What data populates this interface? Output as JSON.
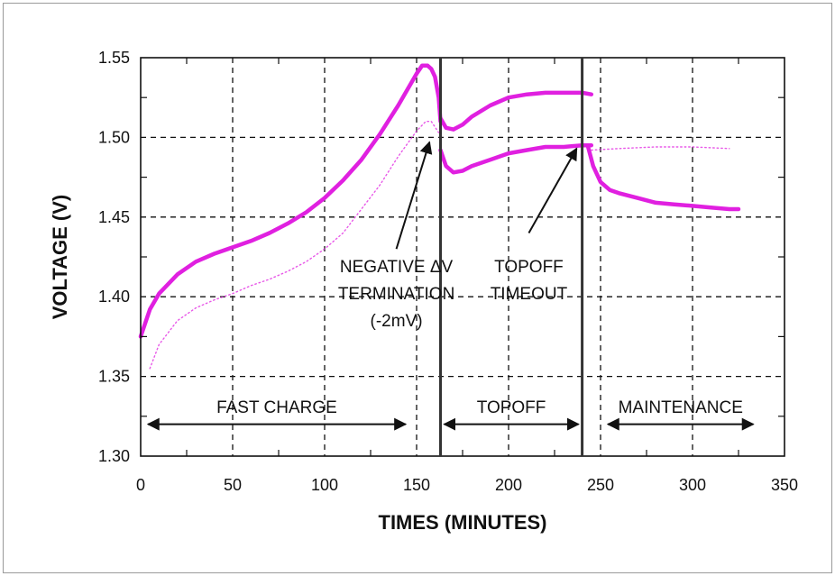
{
  "chart_data": {
    "type": "line",
    "xlabel": "TIMES (MINUTES)",
    "ylabel": "VOLTAGE (V)",
    "xlim": [
      0,
      350
    ],
    "ylim": [
      1.3,
      1.55
    ],
    "x_ticks": [
      "0",
      "50",
      "100",
      "150",
      "200",
      "250",
      "300",
      "350"
    ],
    "y_ticks": [
      "1.30",
      "1.35",
      "1.40",
      "1.45",
      "1.50",
      "1.55"
    ],
    "grid": true,
    "line_color": "#e020e0",
    "series": [
      {
        "style": "solid",
        "x": [
          0,
          5,
          10,
          20,
          30,
          40,
          50,
          60,
          70,
          80,
          90,
          100,
          110,
          120,
          130,
          140,
          145,
          150,
          153,
          156,
          158,
          160,
          162,
          163
        ],
        "y": [
          1.375,
          1.392,
          1.402,
          1.414,
          1.422,
          1.427,
          1.431,
          1.435,
          1.44,
          1.446,
          1.453,
          1.462,
          1.473,
          1.486,
          1.502,
          1.52,
          1.53,
          1.54,
          1.545,
          1.545,
          1.543,
          1.538,
          1.525,
          1.51
        ]
      },
      {
        "style": "solid",
        "x": [
          163,
          166,
          170,
          175,
          180,
          190,
          200,
          210,
          220,
          230,
          240,
          245
        ],
        "y": [
          1.512,
          1.506,
          1.505,
          1.508,
          1.513,
          1.52,
          1.525,
          1.527,
          1.528,
          1.528,
          1.528,
          1.527
        ]
      },
      {
        "style": "solid",
        "x": [
          163,
          166,
          170,
          175,
          180,
          190,
          200,
          210,
          220,
          230,
          240,
          245
        ],
        "y": [
          1.492,
          1.482,
          1.478,
          1.479,
          1.482,
          1.486,
          1.49,
          1.492,
          1.494,
          1.494,
          1.495,
          1.495
        ]
      },
      {
        "style": "solid",
        "x": [
          243,
          246,
          250,
          255,
          260,
          270,
          280,
          290,
          300,
          310,
          320,
          325
        ],
        "y": [
          1.495,
          1.482,
          1.472,
          1.467,
          1.465,
          1.462,
          1.459,
          1.458,
          1.457,
          1.456,
          1.455,
          1.455
        ]
      },
      {
        "style": "dotted",
        "x": [
          5,
          10,
          20,
          30,
          40,
          50,
          60,
          70,
          80,
          90,
          100,
          110,
          120,
          130,
          140,
          150,
          155,
          158,
          162
        ],
        "y": [
          1.355,
          1.37,
          1.385,
          1.393,
          1.398,
          1.402,
          1.407,
          1.411,
          1.416,
          1.422,
          1.43,
          1.44,
          1.455,
          1.47,
          1.488,
          1.504,
          1.51,
          1.51,
          1.503
        ]
      },
      {
        "style": "dotted",
        "x": [
          245,
          260,
          280,
          300,
          320
        ],
        "y": [
          1.492,
          1.493,
          1.494,
          1.494,
          1.493
        ]
      }
    ],
    "vertical_markers": [
      163,
      240
    ],
    "annotations": [
      {
        "id": "negative-dv",
        "lines": [
          "NEGATIVE ΔV",
          "TERMINATION",
          "(-2mV)"
        ],
        "arrow_from": [
          139,
          1.43
        ],
        "arrow_to": [
          157,
          1.497
        ]
      },
      {
        "id": "topoff-timeout",
        "lines": [
          "TOPOFF",
          "TIMEOUT"
        ],
        "arrow_from": [
          211,
          1.44
        ],
        "arrow_to": [
          237,
          1.493
        ]
      }
    ],
    "phases": [
      {
        "label": "FAST CHARGE",
        "x_start": 4,
        "x_end": 144,
        "y": 1.32,
        "label_y": 1.331
      },
      {
        "label": "TOPOFF",
        "x_start": 165,
        "x_end": 238,
        "y": 1.32,
        "label_y": 1.331
      },
      {
        "label": "MAINTENANCE",
        "x_start": 254,
        "x_end": 333,
        "y": 1.32,
        "label_y": 1.331
      }
    ]
  }
}
